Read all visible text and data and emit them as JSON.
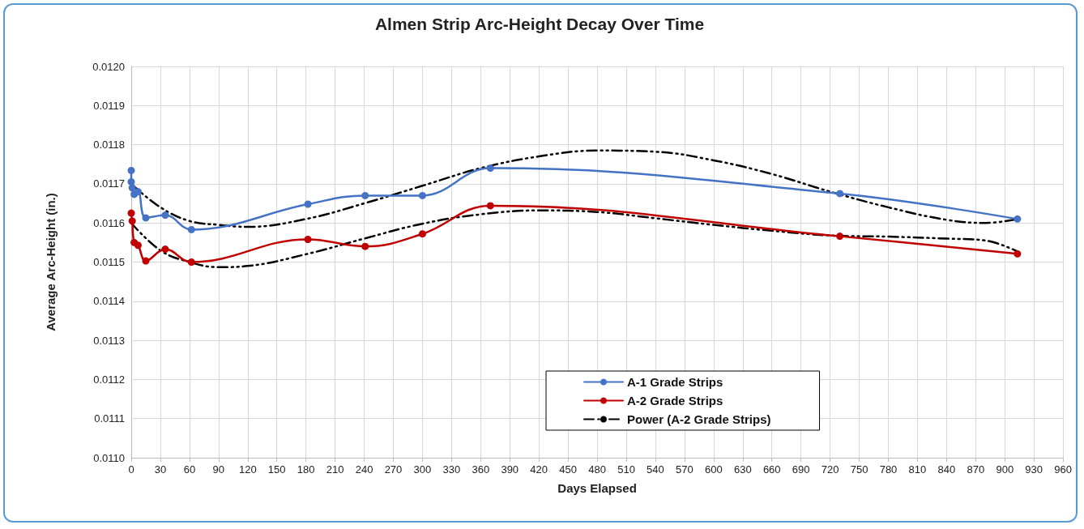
{
  "chart_data": {
    "type": "line",
    "title": "Almen Strip Arc-Height Decay Over Time",
    "xlabel": "Days Elapsed",
    "ylabel": "Average Arc-Height (in.)",
    "xlim": [
      0,
      960
    ],
    "xticks": [
      0,
      30,
      60,
      90,
      120,
      150,
      180,
      210,
      240,
      270,
      300,
      330,
      360,
      390,
      420,
      450,
      480,
      510,
      540,
      570,
      600,
      630,
      660,
      690,
      720,
      750,
      780,
      810,
      840,
      870,
      900,
      930,
      960
    ],
    "ylim": [
      0.011,
      0.012
    ],
    "yticks": [
      {
        "value": 0.011,
        "label": "0.0110"
      },
      {
        "value": 0.0111,
        "label": "0.0111"
      },
      {
        "value": 0.0112,
        "label": "0.0112"
      },
      {
        "value": 0.0113,
        "label": "0.0113"
      },
      {
        "value": 0.0114,
        "label": "0.0114"
      },
      {
        "value": 0.0115,
        "label": "0.0115"
      },
      {
        "value": 0.0116,
        "label": "0.0116"
      },
      {
        "value": 0.0117,
        "label": "0.0117"
      },
      {
        "value": 0.0118,
        "label": "0.0118"
      },
      {
        "value": 0.0119,
        "label": "0.0119"
      },
      {
        "value": 0.012,
        "label": "0.0120"
      }
    ],
    "grid": true,
    "legend": "bottom",
    "series": [
      {
        "name": "A-1 Grade Strips",
        "color": "#4472c4",
        "marker": "circle",
        "line_style": "solid",
        "x": [
          0,
          0,
          1,
          3,
          7,
          15,
          35,
          62,
          182,
          241,
          300,
          370,
          730,
          913
        ],
        "values": [
          0.011734,
          0.011705,
          0.01169,
          0.011673,
          0.01168,
          0.011613,
          0.01162,
          0.011583,
          0.011648,
          0.01167,
          0.01167,
          0.01174,
          0.011675,
          0.01161
        ]
      },
      {
        "name": "A-2 Grade Strips",
        "color": "#c00000",
        "marker": "circle",
        "line_style": "solid",
        "x": [
          0,
          1,
          3,
          7,
          15,
          35,
          62,
          182,
          241,
          300,
          370,
          730,
          913
        ],
        "values": [
          0.011625,
          0.011605,
          0.01155,
          0.011543,
          0.011503,
          0.011533,
          0.0115,
          0.011558,
          0.01154,
          0.011572,
          0.011644,
          0.011566,
          0.011521
        ]
      },
      {
        "name": "Power (A-2 Grade Strips)",
        "color": "#000000",
        "marker": "none",
        "line_style": "dashed",
        "x": [
          0,
          30,
          60,
          90,
          120,
          180,
          240,
          300,
          360,
          420,
          480,
          540,
          600,
          660,
          720,
          780,
          840,
          880,
          913
        ],
        "values": [
          0.0116,
          0.01153,
          0.0115,
          0.011487,
          0.01149,
          0.01152,
          0.01156,
          0.011598,
          0.011622,
          0.011632,
          0.011628,
          0.011612,
          0.011595,
          0.01158,
          0.011568,
          0.011565,
          0.01156,
          0.011555,
          0.011527
        ]
      },
      {
        "color": "#000000",
        "marker": "none",
        "line_style": "dashed",
        "x": [
          0,
          30,
          60,
          90,
          120,
          180,
          240,
          300,
          360,
          420,
          480,
          540,
          600,
          660,
          720,
          780,
          840,
          880,
          913
        ],
        "values": [
          0.0117,
          0.01164,
          0.011605,
          0.011595,
          0.01159,
          0.01161,
          0.01165,
          0.011695,
          0.01174,
          0.01177,
          0.011785,
          0.011782,
          0.01176,
          0.011725,
          0.01168,
          0.01164,
          0.011608,
          0.0116,
          0.01161
        ]
      }
    ]
  }
}
